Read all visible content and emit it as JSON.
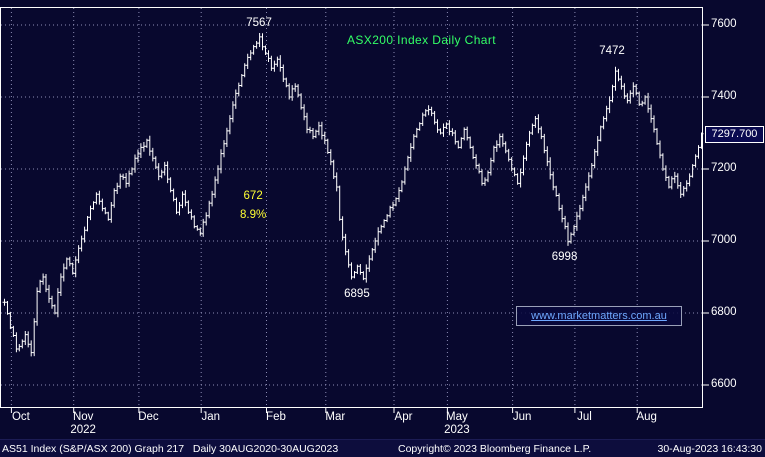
{
  "colors": {
    "background": "#08082e",
    "bars": "#ffffff",
    "grid": "#8c8cb4",
    "title": "#33ff66",
    "highlight": "#ffff33",
    "link": "#6fa8ff",
    "axis_text": "#ffffff",
    "last_price_box_bg": "#0a0a50"
  },
  "watermark": {
    "text": "www.marketmatters.com.au"
  },
  "footer": {
    "left": "AS51 Index (S&P/ASX 200) Graph 217   Daily 30AUG2020-30AUG2023",
    "center": "Copyright© 2023 Bloomberg Finance L.P.",
    "right": "30-Aug-2023 16:43:30"
  },
  "chart_data": {
    "type": "ohlc-bar",
    "title": "ASX200 Index Daily Chart",
    "xlabel": "",
    "ylabel": "",
    "ylim": [
      6550,
      7660
    ],
    "y_ticks": [
      6600,
      6800,
      7000,
      7200,
      7400,
      7600
    ],
    "grid": "dotted",
    "legend": "none",
    "total_days": 236,
    "last_price": 7297.7,
    "last_price_display": "7297.700",
    "months": [
      {
        "label": "Oct",
        "day": 3
      },
      {
        "label": "Nov",
        "day": 24
      },
      {
        "label": "Dec",
        "day": 46
      },
      {
        "label": "Jan",
        "day": 67
      },
      {
        "label": "Feb",
        "day": 89
      },
      {
        "label": "Mar",
        "day": 109
      },
      {
        "label": "Apr",
        "day": 132
      },
      {
        "label": "May",
        "day": 150
      },
      {
        "label": "Jun",
        "day": 172
      },
      {
        "label": "Jul",
        "day": 193
      },
      {
        "label": "Aug",
        "day": 214
      }
    ],
    "years": [
      {
        "label": "2022",
        "day": 24
      },
      {
        "label": "2023",
        "day": 150
      }
    ],
    "keypoints": [
      [
        0,
        6830
      ],
      [
        2,
        6760
      ],
      [
        4,
        6700
      ],
      [
        7,
        6740
      ],
      [
        9,
        6690
      ],
      [
        11,
        6860
      ],
      [
        13,
        6900
      ],
      [
        15,
        6840
      ],
      [
        17,
        6800
      ],
      [
        19,
        6900
      ],
      [
        21,
        6950
      ],
      [
        23,
        6910
      ],
      [
        25,
        6980
      ],
      [
        27,
        7030
      ],
      [
        29,
        7090
      ],
      [
        31,
        7130
      ],
      [
        33,
        7090
      ],
      [
        35,
        7060
      ],
      [
        37,
        7140
      ],
      [
        39,
        7180
      ],
      [
        41,
        7160
      ],
      [
        44,
        7230
      ],
      [
        46,
        7260
      ],
      [
        48,
        7280
      ],
      [
        50,
        7230
      ],
      [
        52,
        7180
      ],
      [
        54,
        7210
      ],
      [
        56,
        7140
      ],
      [
        58,
        7080
      ],
      [
        60,
        7130
      ],
      [
        62,
        7080
      ],
      [
        64,
        7040
      ],
      [
        66,
        7020
      ],
      [
        68,
        7070
      ],
      [
        70,
        7130
      ],
      [
        72,
        7200
      ],
      [
        74,
        7270
      ],
      [
        76,
        7340
      ],
      [
        78,
        7410
      ],
      [
        80,
        7460
      ],
      [
        82,
        7510
      ],
      [
        84,
        7540
      ],
      [
        86,
        7567
      ],
      [
        88,
        7520
      ],
      [
        90,
        7480
      ],
      [
        92,
        7505
      ],
      [
        94,
        7450
      ],
      [
        96,
        7400
      ],
      [
        98,
        7430
      ],
      [
        100,
        7370
      ],
      [
        102,
        7310
      ],
      [
        104,
        7290
      ],
      [
        106,
        7320
      ],
      [
        108,
        7280
      ],
      [
        110,
        7220
      ],
      [
        112,
        7150
      ],
      [
        113,
        7060
      ],
      [
        115,
        6970
      ],
      [
        117,
        6900
      ],
      [
        119,
        6930
      ],
      [
        121,
        6895
      ],
      [
        123,
        6950
      ],
      [
        125,
        7000
      ],
      [
        127,
        7040
      ],
      [
        129,
        7070
      ],
      [
        131,
        7100
      ],
      [
        133,
        7140
      ],
      [
        135,
        7200
      ],
      [
        137,
        7260
      ],
      [
        139,
        7310
      ],
      [
        141,
        7350
      ],
      [
        143,
        7365
      ],
      [
        145,
        7330
      ],
      [
        147,
        7300
      ],
      [
        149,
        7325
      ],
      [
        151,
        7300
      ],
      [
        153,
        7260
      ],
      [
        155,
        7310
      ],
      [
        157,
        7260
      ],
      [
        159,
        7210
      ],
      [
        161,
        7160
      ],
      [
        163,
        7190
      ],
      [
        165,
        7260
      ],
      [
        167,
        7290
      ],
      [
        169,
        7250
      ],
      [
        171,
        7200
      ],
      [
        173,
        7160
      ],
      [
        175,
        7230
      ],
      [
        177,
        7300
      ],
      [
        179,
        7340
      ],
      [
        181,
        7290
      ],
      [
        183,
        7220
      ],
      [
        185,
        7150
      ],
      [
        187,
        7090
      ],
      [
        189,
        7040
      ],
      [
        190,
        6998
      ],
      [
        192,
        7040
      ],
      [
        194,
        7090
      ],
      [
        196,
        7150
      ],
      [
        198,
        7210
      ],
      [
        200,
        7280
      ],
      [
        202,
        7340
      ],
      [
        204,
        7390
      ],
      [
        206,
        7472
      ],
      [
        208,
        7430
      ],
      [
        210,
        7390
      ],
      [
        212,
        7430
      ],
      [
        214,
        7380
      ],
      [
        216,
        7400
      ],
      [
        218,
        7340
      ],
      [
        220,
        7270
      ],
      [
        222,
        7200
      ],
      [
        224,
        7150
      ],
      [
        226,
        7180
      ],
      [
        228,
        7130
      ],
      [
        230,
        7160
      ],
      [
        232,
        7210
      ],
      [
        234,
        7260
      ],
      [
        235,
        7297.7
      ]
    ],
    "annotations": [
      {
        "text": "7567",
        "day": 86,
        "price": 7567,
        "placement": "above",
        "color": "#ffffff"
      },
      {
        "text": "7472",
        "day": 205,
        "price": 7490,
        "placement": "above",
        "color": "#ffffff"
      },
      {
        "text": "672",
        "day": 84,
        "price": 7120,
        "placement": "middle",
        "color": "#ffff33"
      },
      {
        "text": "8.9%",
        "day": 84,
        "price": 7068,
        "placement": "middle",
        "color": "#ffff33"
      },
      {
        "text": "6895",
        "day": 119,
        "price": 6895,
        "placement": "below",
        "color": "#ffffff"
      },
      {
        "text": "6998",
        "day": 189,
        "price": 6998,
        "placement": "below",
        "color": "#ffffff"
      }
    ]
  }
}
